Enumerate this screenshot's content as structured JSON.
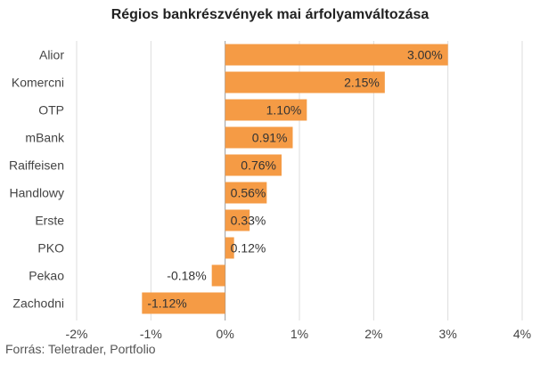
{
  "chart_data": {
    "type": "bar",
    "orientation": "horizontal",
    "title": "Régios bankrészvények mai árfolyamváltozása",
    "categories": [
      "Alior",
      "Komercni",
      "OTP",
      "mBank",
      "Raiffeisen",
      "Handlowy",
      "Erste",
      "PKO",
      "Pekao",
      "Zachodni"
    ],
    "values": [
      3.0,
      2.15,
      1.1,
      0.91,
      0.76,
      0.56,
      0.33,
      0.12,
      -0.18,
      -1.12
    ],
    "value_labels": [
      "3.00%",
      "2.15%",
      "1.10%",
      "0.91%",
      "0.76%",
      "0.56%",
      "0.33%",
      "0.12%",
      "-0.18%",
      "-1.12%"
    ],
    "xlim": [
      -2,
      4
    ],
    "xticks": [
      -2,
      -1,
      0,
      1,
      2,
      3,
      4
    ],
    "xtick_labels": [
      "-2%",
      "-1%",
      "0%",
      "1%",
      "2%",
      "3%",
      "4%"
    ],
    "grid": "vertical",
    "bar_color": "#F59B45",
    "source": "Forrás: Teletrader, Portfolio"
  }
}
